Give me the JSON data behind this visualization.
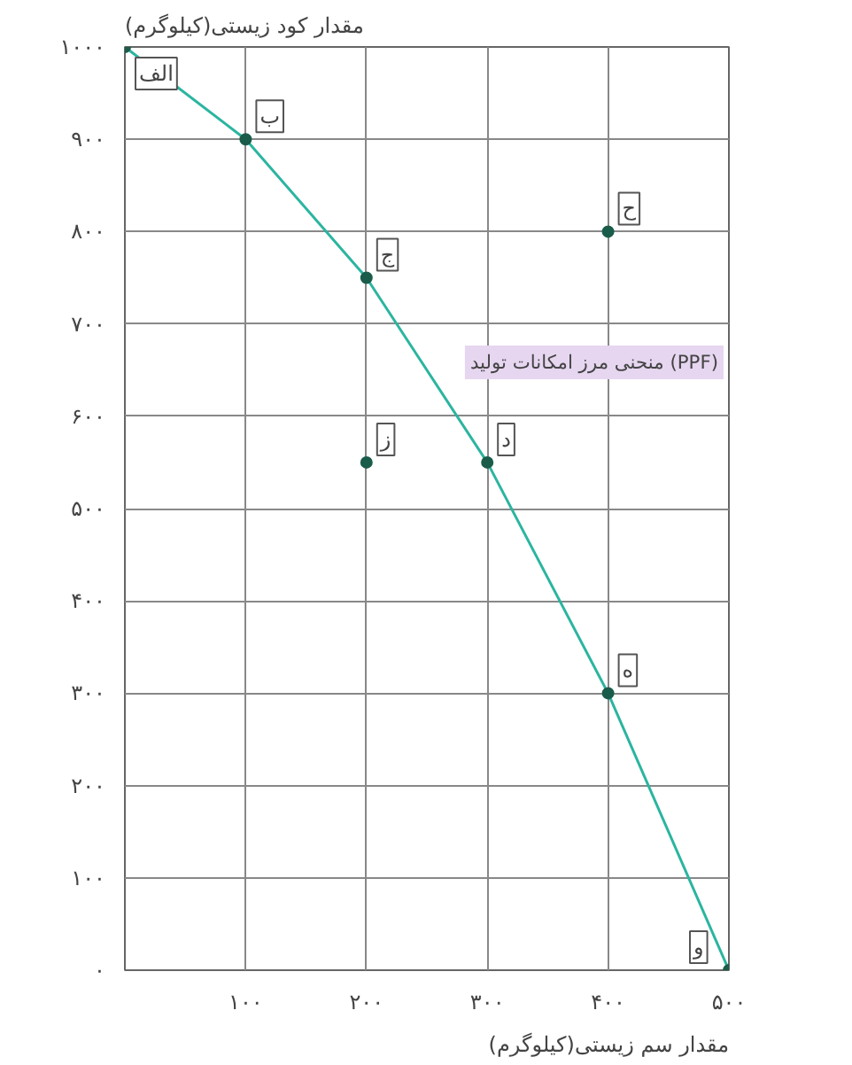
{
  "chart_data": {
    "type": "line",
    "xlabel": "مقدار سم زیستی(کیلوگرم)",
    "ylabel": "مقدار کود زیستی(کیلوگرم)",
    "x": [
      0,
      100,
      200,
      300,
      400,
      500
    ],
    "series": [
      {
        "color": "#2bb5a0",
        "values": [
          1000,
          900,
          750,
          550,
          300,
          0
        ]
      },
      {
        "type": "scatter",
        "color": "#1a5c4a",
        "x": [
          200,
          400
        ],
        "values": [
          550,
          800
        ]
      }
    ],
    "annotations": [
      {
        "text": "الف",
        "x": 0,
        "y": 1000
      },
      {
        "text": "ب",
        "x": 100,
        "y": 900
      },
      {
        "text": "ج",
        "x": 200,
        "y": 750
      },
      {
        "text": "د",
        "x": 300,
        "y": 550
      },
      {
        "text": "ه",
        "x": 400,
        "y": 300
      },
      {
        "text": "و",
        "x": 500,
        "y": 0
      },
      {
        "text": "ز",
        "x": 200,
        "y": 550
      },
      {
        "text": "ح",
        "x": 400,
        "y": 800
      },
      "منحنی مرز امکانات تولید (PPF)"
    ],
    "xlim": [
      0,
      500
    ],
    "ylim": [
      0,
      1000
    ],
    "xticks": [
      {
        "value": 100,
        "label": "۱۰۰"
      },
      {
        "value": 200,
        "label": "۲۰۰"
      },
      {
        "value": 300,
        "label": "۳۰۰"
      },
      {
        "value": 400,
        "label": "۴۰۰"
      },
      {
        "value": 500,
        "label": "۵۰۰"
      }
    ],
    "yticks": [
      {
        "value": 0,
        "label": "۰"
      },
      {
        "value": 100,
        "label": "۱۰۰"
      },
      {
        "value": 200,
        "label": "۲۰۰"
      },
      {
        "value": 300,
        "label": "۳۰۰"
      },
      {
        "value": 400,
        "label": "۴۰۰"
      },
      {
        "value": 500,
        "label": "۵۰۰"
      },
      {
        "value": 600,
        "label": "۶۰۰"
      },
      {
        "value": 700,
        "label": "۷۰۰"
      },
      {
        "value": 800,
        "label": "۸۰۰"
      },
      {
        "value": 900,
        "label": "۹۰۰"
      },
      {
        "value": 1000,
        "label": "۱۰۰۰"
      }
    ],
    "grid": true,
    "marker": "circle",
    "line_style": "solid"
  }
}
